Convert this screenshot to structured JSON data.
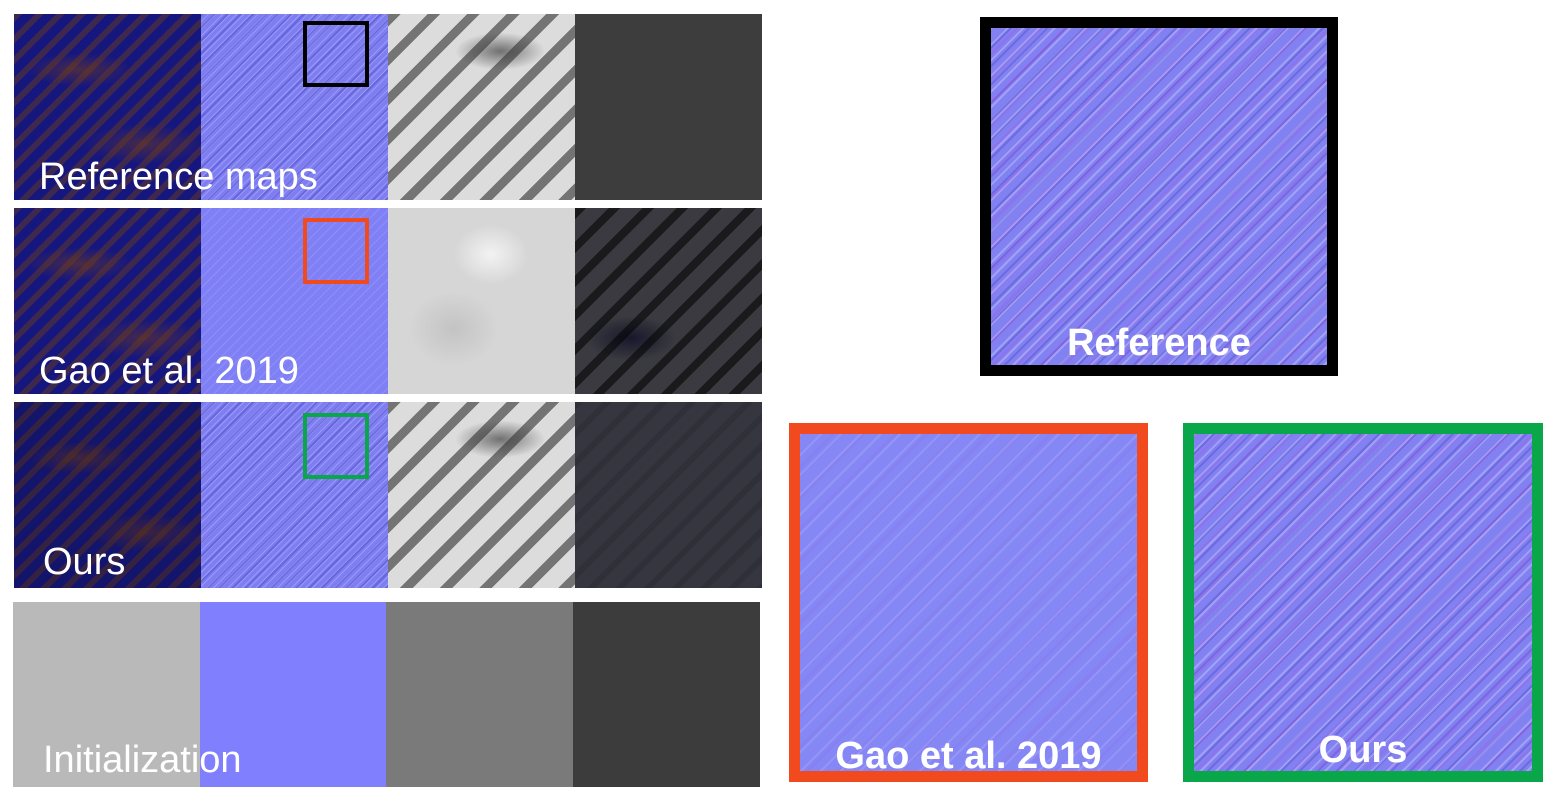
{
  "rows": {
    "reference": {
      "label": "Reference maps"
    },
    "gao": {
      "label": "Gao et al. 2019"
    },
    "ours": {
      "label": "Ours"
    },
    "init": {
      "label": "Initialization"
    }
  },
  "zoom": {
    "reference": {
      "label": "Reference",
      "frame_color": "#000000"
    },
    "gao": {
      "label": "Gao et al. 2019",
      "frame_color": "#f04a1e"
    },
    "ours": {
      "label": "Ours",
      "frame_color": "#0aa64a"
    }
  }
}
